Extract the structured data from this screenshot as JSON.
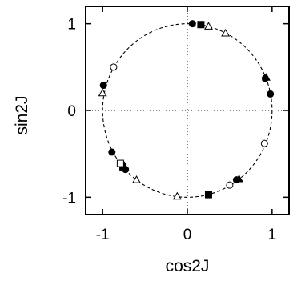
{
  "chart_data": {
    "type": "scatter",
    "title": "",
    "xlabel": "cos2J",
    "ylabel": "sin2J",
    "xlim": [
      -1.2,
      1.2
    ],
    "ylim": [
      -1.2,
      1.2
    ],
    "xticks": [
      -1,
      0,
      1
    ],
    "yticks": [
      -1,
      0,
      1
    ],
    "xtick_labels": [
      "-1",
      "0",
      "1"
    ],
    "ytick_labels": [
      "-1",
      "0",
      "1"
    ],
    "grid": false,
    "reference_lines": [
      {
        "orientation": "vertical",
        "value": 0,
        "style": "dotted"
      },
      {
        "orientation": "horizontal",
        "value": 0,
        "style": "dotted"
      }
    ],
    "reference_curve": {
      "shape": "unit-circle",
      "style": "dashed"
    },
    "series": [
      {
        "marker": "filled-circle",
        "points": [
          [
            0.06,
            1.0
          ],
          [
            0.92,
            0.37
          ],
          [
            0.98,
            0.19
          ],
          [
            -0.99,
            0.29
          ],
          [
            -0.89,
            -0.48
          ],
          [
            -0.73,
            -0.68
          ],
          [
            0.58,
            -0.8
          ]
        ]
      },
      {
        "marker": "open-circle",
        "points": [
          [
            -0.87,
            0.5
          ],
          [
            0.91,
            -0.38
          ],
          [
            0.5,
            -0.86
          ],
          [
            -0.77,
            -0.62
          ]
        ]
      },
      {
        "marker": "filled-square",
        "points": [
          [
            0.16,
            0.99
          ],
          [
            0.25,
            -0.97
          ],
          [
            -0.76,
            -0.65
          ]
        ]
      },
      {
        "marker": "open-square",
        "points": [
          [
            -0.79,
            -0.61
          ]
        ]
      },
      {
        "marker": "open-triangle",
        "points": [
          [
            0.25,
            0.97
          ],
          [
            0.45,
            0.89
          ],
          [
            -1.0,
            0.2
          ],
          [
            -0.6,
            -0.8
          ],
          [
            -0.12,
            -0.99
          ]
        ]
      },
      {
        "marker": "filled-triangle",
        "points": [
          [
            0.93,
            0.38
          ],
          [
            0.61,
            -0.79
          ]
        ]
      }
    ]
  }
}
